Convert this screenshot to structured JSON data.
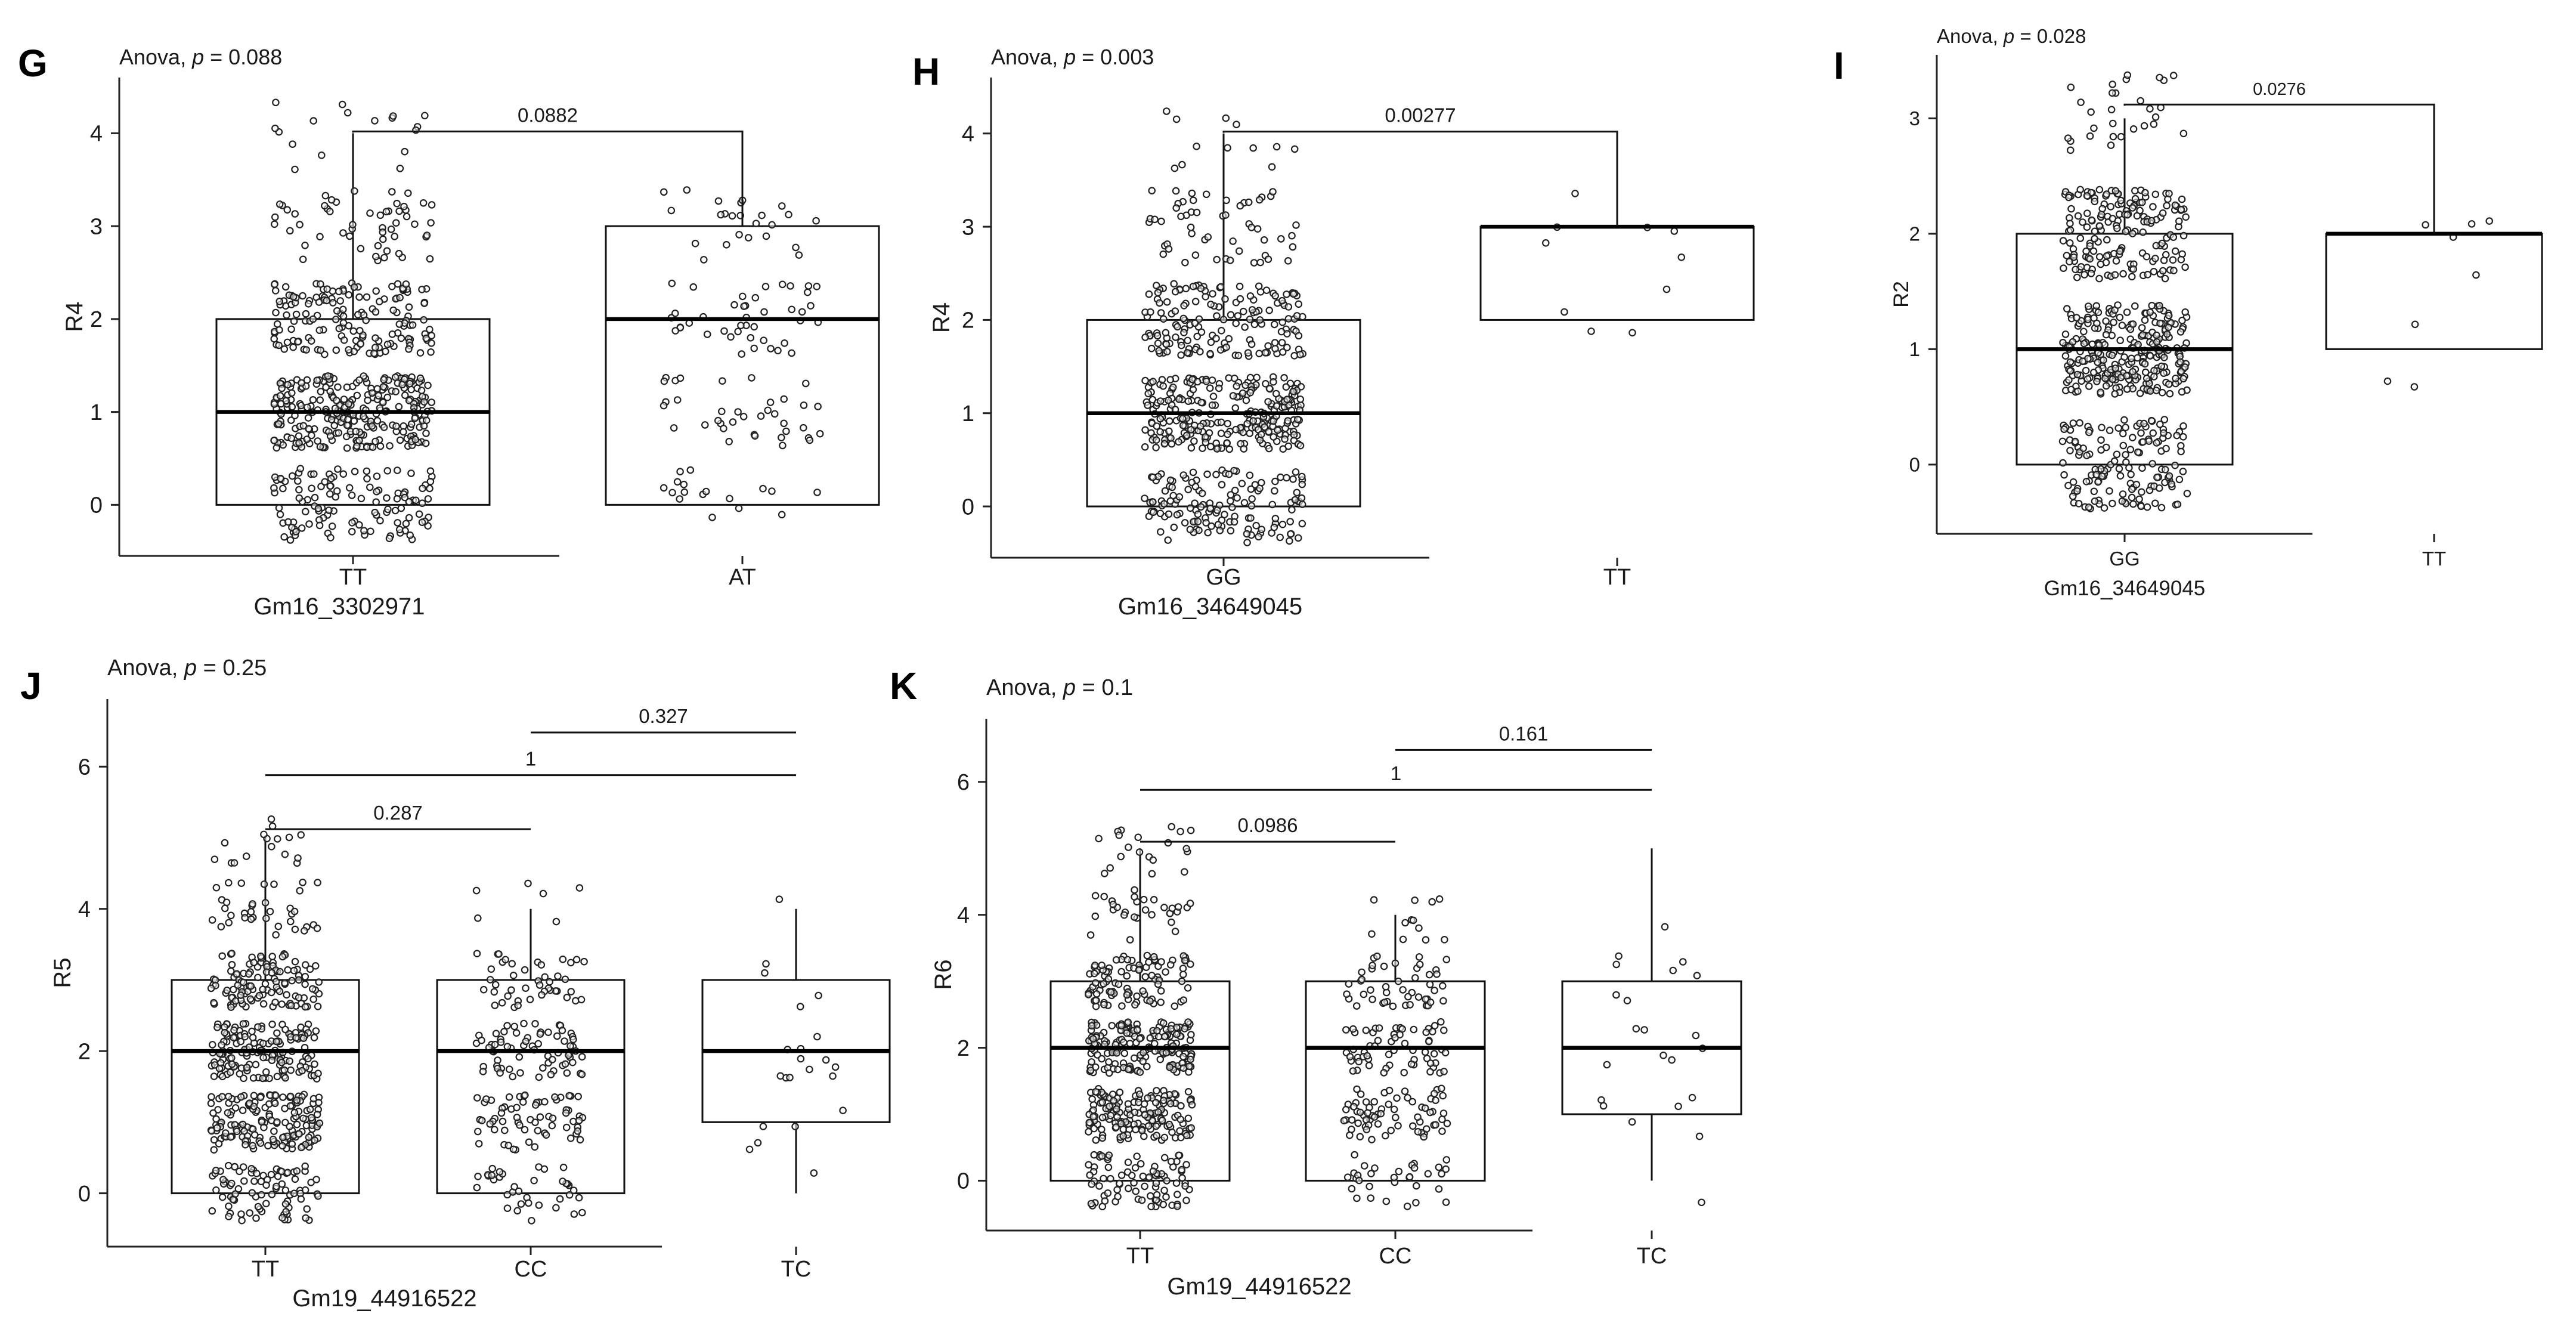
{
  "chart_data": [
    {
      "panel": "G",
      "type": "box",
      "title": "Anova, p = 0.088",
      "title_prefix": "Anova, ",
      "title_p": "p",
      "title_value": " = 0.088",
      "xlabel": "Gm16_3302971",
      "ylabel": "R4",
      "categories": [
        "TT",
        "AT"
      ],
      "ylim": [
        -0.55,
        4.6
      ],
      "yticks": [
        0,
        1,
        2,
        3,
        4
      ],
      "boxes": [
        {
          "category": "TT",
          "q1": 0,
          "median": 1,
          "q3": 2,
          "whisker_low": 0,
          "whisker_high": 4,
          "n_points": 620
        },
        {
          "category": "AT",
          "q1": 0,
          "median": 2,
          "q3": 3,
          "whisker_low": 0,
          "whisker_high": 3,
          "n_points": 120
        }
      ],
      "comparisons": [
        {
          "pair": [
            "TT",
            "AT"
          ],
          "label": "0.0882",
          "y": 4.02
        }
      ]
    },
    {
      "panel": "H",
      "type": "box",
      "title": "Anova, p = 0.003",
      "title_prefix": "Anova, ",
      "title_p": "p",
      "title_value": " = 0.003",
      "xlabel": "Gm16_34649045",
      "ylabel": "R4",
      "categories": [
        "GG",
        "TT"
      ],
      "ylim": [
        -0.55,
        4.6
      ],
      "yticks": [
        0,
        1,
        2,
        3,
        4
      ],
      "boxes": [
        {
          "category": "GG",
          "q1": 0,
          "median": 1,
          "q3": 2,
          "whisker_low": 0,
          "whisker_high": 4,
          "n_points": 620
        },
        {
          "category": "TT",
          "q1": 2,
          "median": 3,
          "q3": 3,
          "whisker_low": 2,
          "whisker_high": 3,
          "n_points": 10
        }
      ],
      "comparisons": [
        {
          "pair": [
            "GG",
            "TT"
          ],
          "label": "0.00277",
          "y": 4.02
        }
      ]
    },
    {
      "panel": "I",
      "type": "box",
      "title": "Anova, p = 0.028",
      "title_prefix": "Anova, ",
      "title_p": "p",
      "title_value": " = 0.028",
      "xlabel": "Gm16_34649045",
      "ylabel": "R2",
      "categories": [
        "GG",
        "TT"
      ],
      "ylim": [
        -0.6,
        3.55
      ],
      "yticks": [
        0,
        1,
        2,
        3
      ],
      "boxes": [
        {
          "category": "GG",
          "q1": 0,
          "median": 1,
          "q3": 2,
          "whisker_low": 0,
          "whisker_high": 3,
          "n_points": 620
        },
        {
          "category": "TT",
          "q1": 1,
          "median": 2,
          "q3": 2,
          "whisker_low": 1,
          "whisker_high": 2,
          "n_points": 8
        }
      ],
      "comparisons": [
        {
          "pair": [
            "GG",
            "TT"
          ],
          "label": "0.0276",
          "y": 3.12
        }
      ]
    },
    {
      "panel": "J",
      "type": "box",
      "title": "Anova, p = 0.25",
      "title_prefix": "Anova, ",
      "title_p": "p",
      "title_value": " = 0.25",
      "xlabel": "Gm19_44916522",
      "ylabel": "R5",
      "categories": [
        "TT",
        "CC",
        "TC"
      ],
      "ylim": [
        -0.75,
        6.95
      ],
      "yticks": [
        0,
        2,
        4,
        6
      ],
      "boxes": [
        {
          "category": "TT",
          "q1": 0,
          "median": 2,
          "q3": 3,
          "whisker_low": 0,
          "whisker_high": 5,
          "n_points": 560
        },
        {
          "category": "CC",
          "q1": 0,
          "median": 2,
          "q3": 3,
          "whisker_low": 0,
          "whisker_high": 4,
          "n_points": 220
        },
        {
          "category": "TC",
          "q1": 1,
          "median": 2,
          "q3": 3,
          "whisker_low": 0,
          "whisker_high": 4,
          "n_points": 22
        }
      ],
      "comparisons": [
        {
          "pair": [
            "TT",
            "CC"
          ],
          "label": "0.287",
          "y": 5.12
        },
        {
          "pair": [
            "TT",
            "TC"
          ],
          "label": "1",
          "y": 5.88
        },
        {
          "pair": [
            "CC",
            "TC"
          ],
          "label": "0.327",
          "y": 6.48
        }
      ]
    },
    {
      "panel": "K",
      "type": "box",
      "title": "Anova, p = 0.1",
      "title_prefix": "Anova, ",
      "title_p": "p",
      "title_value": " = 0.1",
      "xlabel": "Gm19_44916522",
      "ylabel": "R6",
      "categories": [
        "TT",
        "CC",
        "TC"
      ],
      "ylim": [
        -0.75,
        6.95
      ],
      "yticks": [
        0,
        2,
        4,
        6
      ],
      "boxes": [
        {
          "category": "TT",
          "q1": 0,
          "median": 2,
          "q3": 3,
          "whisker_low": 0,
          "whisker_high": 5,
          "n_points": 560
        },
        {
          "category": "CC",
          "q1": 0,
          "median": 2,
          "q3": 3,
          "whisker_low": 0,
          "whisker_high": 4,
          "n_points": 220
        },
        {
          "category": "TC",
          "q1": 1,
          "median": 2,
          "q3": 3,
          "whisker_low": 0,
          "whisker_high": 5,
          "n_points": 22
        }
      ],
      "comparisons": [
        {
          "pair": [
            "TT",
            "CC"
          ],
          "label": "0.0986",
          "y": 5.1
        },
        {
          "pair": [
            "TT",
            "TC"
          ],
          "label": "1",
          "y": 5.88
        },
        {
          "pair": [
            "CC",
            "TC"
          ],
          "label": "0.161",
          "y": 6.48
        }
      ]
    }
  ]
}
